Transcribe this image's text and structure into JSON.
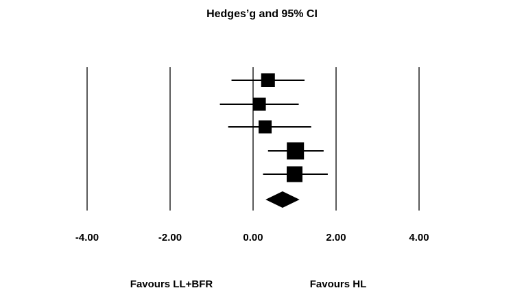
{
  "chart_data": {
    "type": "forest",
    "title": "Hedges’g and 95% CI",
    "xlabel": "",
    "ylabel": "",
    "xlim": [
      -4,
      4
    ],
    "grid": false,
    "ticks": [
      -4,
      -2,
      0,
      2,
      4
    ],
    "tick_labels": [
      "-4.00",
      "-2.00",
      "0.00",
      "2.00",
      "4.00"
    ],
    "favours": {
      "left": "Favours LL+BFR",
      "right": "Favours HL"
    },
    "studies": [
      {
        "estimate": 0.36,
        "lower": -0.52,
        "upper": 1.24,
        "weight": 1.0
      },
      {
        "estimate": 0.15,
        "lower": -0.8,
        "upper": 1.1,
        "weight": 0.95
      },
      {
        "estimate": 0.29,
        "lower": -0.6,
        "upper": 1.4,
        "weight": 0.95
      },
      {
        "estimate": 1.02,
        "lower": 0.36,
        "upper": 1.7,
        "weight": 1.25
      },
      {
        "estimate": 1.0,
        "lower": 0.24,
        "upper": 1.8,
        "weight": 1.15
      }
    ],
    "summary": {
      "estimate": 0.71,
      "lower": 0.3,
      "upper": 1.12
    },
    "colors": {
      "marker": "#000000",
      "line": "#000000",
      "reference": "#000000"
    }
  }
}
